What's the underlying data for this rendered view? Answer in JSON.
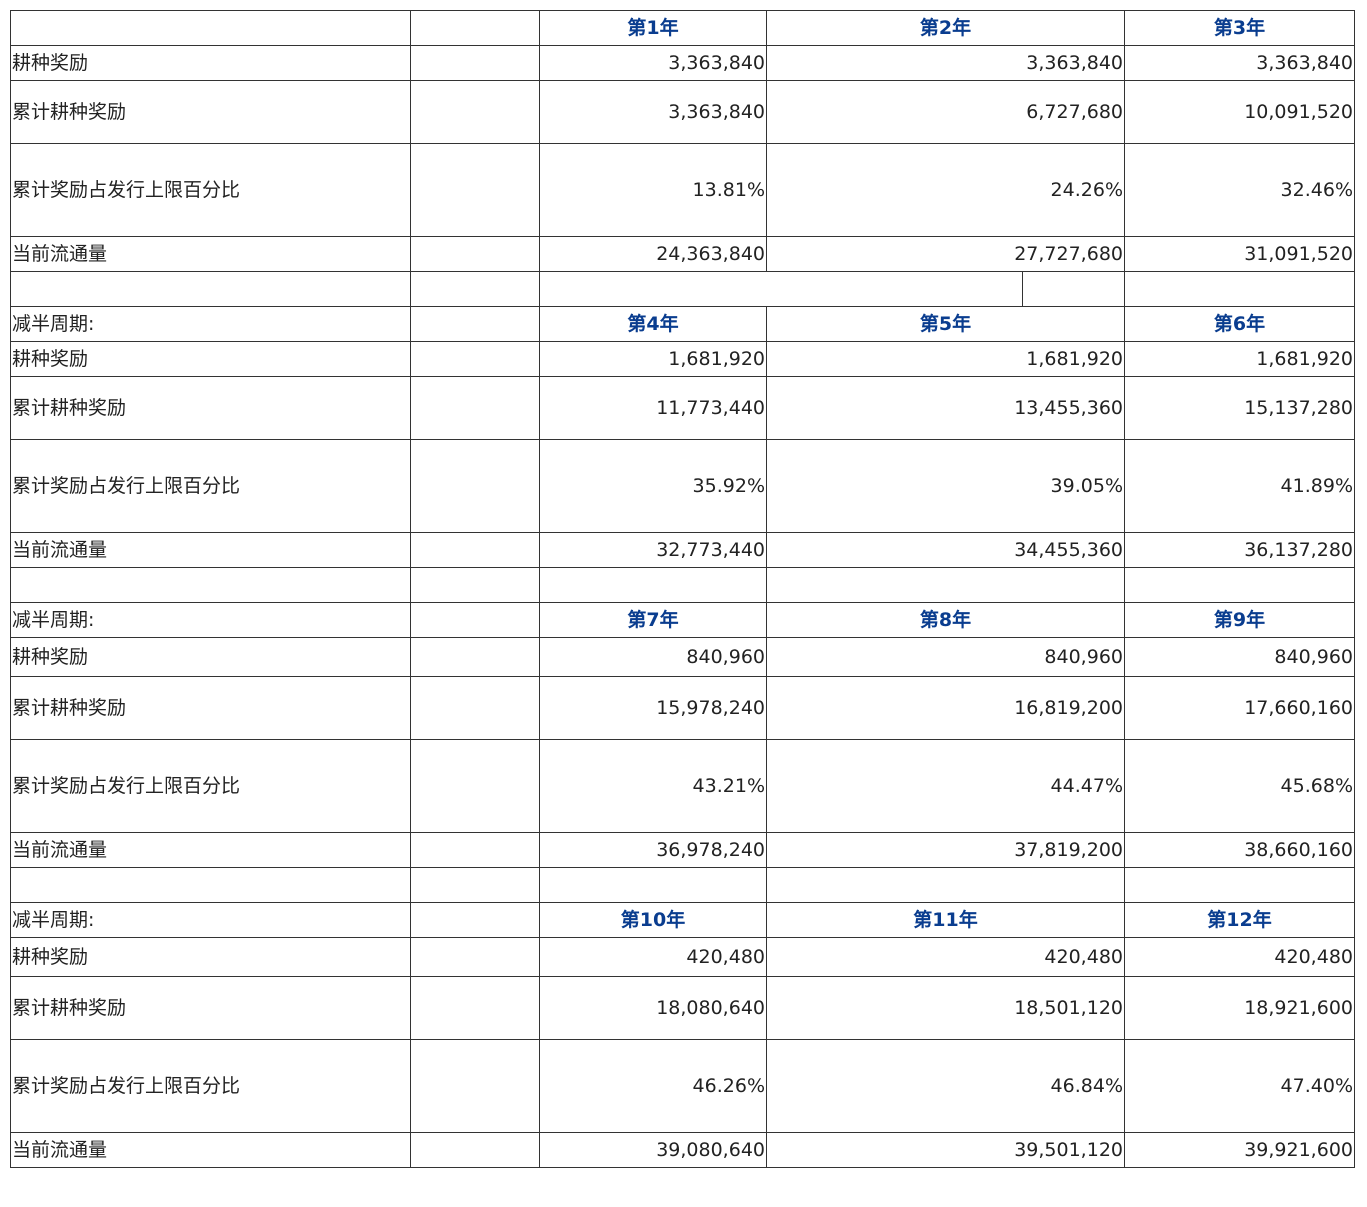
{
  "cycle_label": "减半周期:",
  "row_labels": {
    "reward": "耕种奖励",
    "cumulative": "累计耕种奖励",
    "percent": "累计奖励占发行上限百分比",
    "circulation": "当前流通量"
  },
  "blocks": [
    {
      "years": [
        "第1年",
        "第2年",
        "第3年"
      ],
      "reward": [
        "3,363,840",
        "3,363,840",
        "3,363,840"
      ],
      "cumulative": [
        "3,363,840",
        "6,727,680",
        "10,091,520"
      ],
      "percent": [
        "13.81%",
        "24.26%",
        "32.46%"
      ],
      "circulation": [
        "24,363,840",
        "27,727,680",
        "31,091,520"
      ]
    },
    {
      "years": [
        "第4年",
        "第5年",
        "第6年"
      ],
      "reward": [
        "1,681,920",
        "1,681,920",
        "1,681,920"
      ],
      "cumulative": [
        "11,773,440",
        "13,455,360",
        "15,137,280"
      ],
      "percent": [
        "35.92%",
        "39.05%",
        "41.89%"
      ],
      "circulation": [
        "32,773,440",
        "34,455,360",
        "36,137,280"
      ]
    },
    {
      "years": [
        "第7年",
        "第8年",
        "第9年"
      ],
      "reward": [
        "840,960",
        "840,960",
        "840,960"
      ],
      "cumulative": [
        "15,978,240",
        "16,819,200",
        "17,660,160"
      ],
      "percent": [
        "43.21%",
        "44.47%",
        "45.68%"
      ],
      "circulation": [
        "36,978,240",
        "37,819,200",
        "38,660,160"
      ]
    },
    {
      "years": [
        "第10年",
        "第11年",
        "第12年"
      ],
      "reward": [
        "420,480",
        "420,480",
        "420,480"
      ],
      "cumulative": [
        "18,080,640",
        "18,501,120",
        "18,921,600"
      ],
      "percent": [
        "46.26%",
        "46.84%",
        "47.40%"
      ],
      "circulation": [
        "39,080,640",
        "39,501,120",
        "39,921,600"
      ]
    }
  ]
}
